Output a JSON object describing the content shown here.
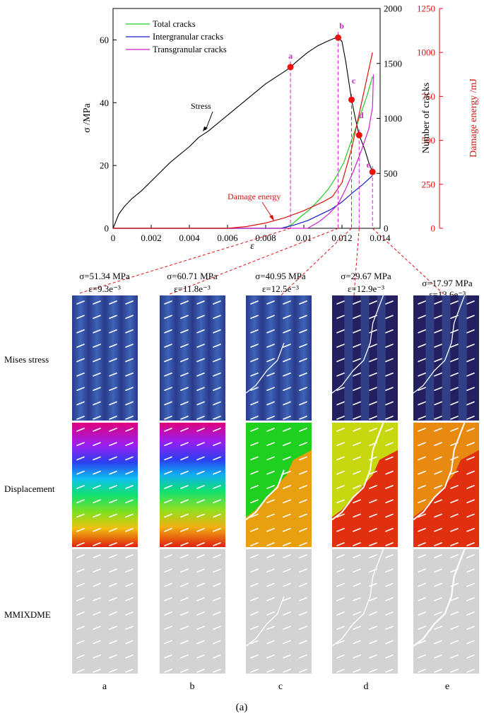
{
  "chart_data": {
    "type": "line",
    "x_axis": {
      "label": "ε",
      "lim": [
        0,
        0.014
      ],
      "ticks": [
        0,
        0.002,
        0.004,
        0.006,
        0.008,
        0.01,
        0.012,
        0.014
      ],
      "tick_labels": [
        "0",
        "0.002",
        "0.004",
        "0.006",
        "0.008",
        "0.01",
        "0.012",
        "0.014"
      ]
    },
    "y_left": {
      "label": "σ /MPa",
      "lim": [
        0,
        70
      ],
      "ticks": [
        0,
        20,
        40,
        60
      ],
      "tick_labels": [
        "0",
        "20",
        "40",
        "60"
      ]
    },
    "y_right_cracks": {
      "label": "Number of cracks",
      "lim": [
        0,
        2000
      ],
      "ticks": [
        0,
        500,
        1000,
        1500,
        2000
      ],
      "tick_labels": [
        "0",
        "500",
        "1000",
        "1500",
        "2000"
      ]
    },
    "y_right_energy": {
      "label": "Damage energy /mJ",
      "lim": [
        0,
        1250
      ],
      "ticks": [
        0,
        250,
        500,
        750,
        1000,
        1250
      ],
      "tick_labels": [
        "0",
        "250",
        "500",
        "750",
        "1000",
        "1250"
      ]
    },
    "legend": {
      "position": "top-left",
      "entries": [
        {
          "name": "Total cracks",
          "color": "#22cc22"
        },
        {
          "name": "Intergranular cracks",
          "color": "#1a1acc"
        },
        {
          "name": "Transgranular cracks",
          "color": "#cc22cc"
        }
      ]
    },
    "annotations": {
      "stress": "Stress",
      "damage": "Damage energy"
    },
    "series": [
      {
        "name": "Stress",
        "axis": "left",
        "color": "#000000",
        "x": [
          0,
          0.0003,
          0.0006,
          0.001,
          0.0015,
          0.002,
          0.0025,
          0.003,
          0.0035,
          0.004,
          0.0045,
          0.005,
          0.0055,
          0.006,
          0.0065,
          0.007,
          0.0075,
          0.008,
          0.0085,
          0.009,
          0.0093,
          0.0097,
          0.0102,
          0.0107,
          0.0112,
          0.0116,
          0.0118,
          0.012,
          0.0122,
          0.0124,
          0.0125,
          0.0127,
          0.0129,
          0.0132,
          0.0134,
          0.0136
        ],
        "y": [
          0,
          4.5,
          7,
          9.5,
          12,
          15,
          18,
          21,
          23.5,
          26,
          29,
          31,
          33.5,
          36,
          38.5,
          41,
          43.5,
          46,
          48,
          50,
          51.3,
          53.5,
          56,
          58,
          59.5,
          60.5,
          60.7,
          59.5,
          53,
          45,
          41,
          35,
          29.7,
          25,
          21,
          18
        ]
      },
      {
        "name": "Total cracks",
        "axis": "cracks",
        "color": "#22cc22",
        "x": [
          0,
          0.009,
          0.0094,
          0.0098,
          0.0103,
          0.0108,
          0.0113,
          0.0117,
          0.0121,
          0.0125,
          0.0129,
          0.0133,
          0.0136
        ],
        "y": [
          0,
          0,
          40,
          100,
          170,
          260,
          360,
          470,
          600,
          800,
          1000,
          1200,
          1380
        ]
      },
      {
        "name": "Intergranular cracks",
        "axis": "cracks",
        "color": "#1a1acc",
        "x": [
          0,
          0.0088,
          0.0095,
          0.0102,
          0.0108,
          0.0114,
          0.012,
          0.0126,
          0.0131,
          0.0136
        ],
        "y": [
          0,
          0,
          30,
          70,
          120,
          170,
          240,
          330,
          400,
          480
        ]
      },
      {
        "name": "Transgranular cracks",
        "axis": "cracks",
        "color": "#cc22cc",
        "x": [
          0,
          0.0102,
          0.0108,
          0.0113,
          0.0118,
          0.0122,
          0.0126,
          0.013,
          0.0134,
          0.0136,
          0.01365
        ],
        "y": [
          0,
          0,
          60,
          130,
          220,
          360,
          520,
          700,
          900,
          1100,
          1400
        ]
      },
      {
        "name": "Damage energy",
        "axis": "energy",
        "color": "#dd1111",
        "x": [
          0,
          0.006,
          0.007,
          0.008,
          0.009,
          0.01,
          0.011,
          0.0115,
          0.012,
          0.0125,
          0.013,
          0.0133,
          0.0136
        ],
        "y": [
          0,
          0,
          10,
          30,
          60,
          100,
          150,
          180,
          260,
          450,
          700,
          850,
          1000
        ]
      }
    ],
    "points": [
      {
        "label": "a",
        "x": 0.0093,
        "y": 51.34
      },
      {
        "label": "b",
        "x": 0.0118,
        "y": 60.71
      },
      {
        "label": "c",
        "x": 0.0125,
        "y": 40.95
      },
      {
        "label": "d",
        "x": 0.0129,
        "y": 29.67
      },
      {
        "label": "e",
        "x": 0.0136,
        "y": 17.97
      }
    ]
  },
  "states": [
    {
      "sigma": "σ=51.34 MPa",
      "eps": "ε=9.3e⁻³",
      "letter": "a",
      "fracture": 0
    },
    {
      "sigma": "σ=60.71 MPa",
      "eps": "ε=11.8e⁻³",
      "letter": "b",
      "fracture": 0
    },
    {
      "sigma": "σ=40.95 MPa",
      "eps": "ε=12.5e⁻³",
      "letter": "c",
      "fracture": 1
    },
    {
      "sigma": "σ=29.67 MPa",
      "eps": "ε=12.9e⁻³",
      "letter": "d",
      "fracture": 2
    },
    {
      "sigma": "σ=17.97 MPa",
      "eps": "ε=13.6e⁻³",
      "letter": "e",
      "fracture": 3
    }
  ],
  "row_labels": [
    "Mises stress",
    "Displacement",
    "MMIXDME"
  ],
  "caption": "(a)"
}
